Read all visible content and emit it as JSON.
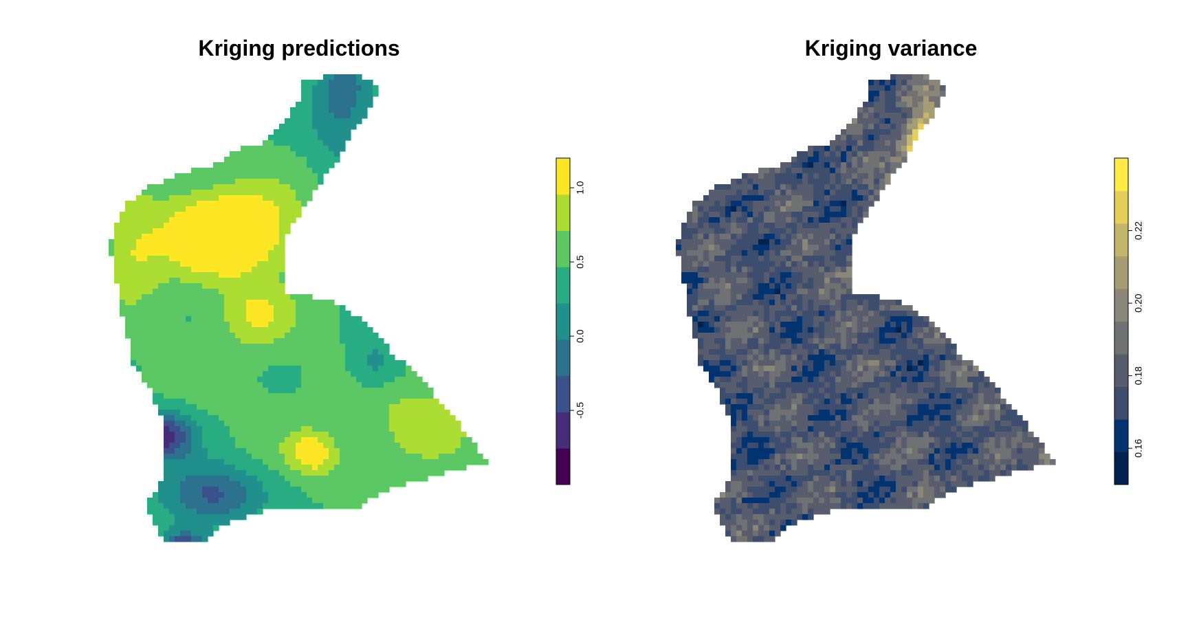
{
  "chart_data": [
    {
      "type": "heatmap",
      "title": "Kriging predictions",
      "colorbar": {
        "colors": [
          "#440154",
          "#472c7a",
          "#3b518b",
          "#2c718e",
          "#21908d",
          "#27ad81",
          "#5cc863",
          "#aadc32",
          "#fde725"
        ],
        "breaks": [
          -1.0,
          -0.8,
          -0.6,
          -0.4,
          -0.2,
          0.0,
          0.2,
          0.4,
          0.6,
          0.8,
          1.0,
          1.2
        ],
        "ticks": [
          {
            "value": -0.5,
            "label": "-0.5"
          },
          {
            "value": 0.0,
            "label": "0.0"
          },
          {
            "value": 0.5,
            "label": "0.5"
          },
          {
            "value": 1.0,
            "label": "1.0"
          }
        ],
        "range": [
          -1.0,
          1.2
        ]
      },
      "notes": "Raster map of kriged predictions over a study region; highest values (~1.1) in the north-west lobe, lowest (~-0.95) in the south-west."
    },
    {
      "type": "heatmap",
      "title": "Kriging variance",
      "colorbar": {
        "colors": [
          "#00204d",
          "#00336f",
          "#3c4d6e",
          "#575d6d",
          "#707173",
          "#8a8779",
          "#a69d75",
          "#c4b56c",
          "#e4cf5b",
          "#ffea46"
        ],
        "ticks": [
          {
            "value": 0.16,
            "label": "0.16"
          },
          {
            "value": 0.18,
            "label": "0.18"
          },
          {
            "value": 0.2,
            "label": "0.20"
          },
          {
            "value": 0.22,
            "label": "0.22"
          }
        ],
        "range": [
          0.15,
          0.24
        ]
      },
      "notes": "Raster map of kriging variance; highest variance (~0.235) along the narrow north-east arm and edges."
    }
  ]
}
